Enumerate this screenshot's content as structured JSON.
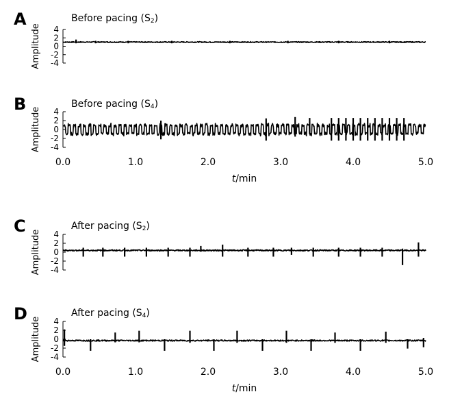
{
  "chart_data": [
    {
      "id": "A",
      "type": "line",
      "panel_label": "A",
      "title": "Before pacing (S",
      "title_sub": "2",
      "title_end": ")",
      "ylabel": "Amplitude",
      "ylim": [
        -4,
        4
      ],
      "yticks": [
        "4",
        "2",
        "0",
        "-2",
        "-4"
      ],
      "xlim": [
        0,
        5
      ],
      "baseline": 1.0,
      "noise": 0.12,
      "beats": [
        {
          "t": 0.18,
          "up": 0.6,
          "down": 0.3
        },
        {
          "t": 0.45,
          "up": 0.3,
          "down": 0.3
        },
        {
          "t": 0.9,
          "up": 0.3,
          "down": 0.3
        },
        {
          "t": 1.5,
          "up": 0.3,
          "down": 0.3
        },
        {
          "t": 2.3,
          "up": 0.3,
          "down": 0.3
        },
        {
          "t": 3.1,
          "up": 0.3,
          "down": 0.3
        },
        {
          "t": 3.8,
          "up": 0.3,
          "down": 0.3
        },
        {
          "t": 4.5,
          "up": 0.3,
          "down": 0.3
        }
      ]
    },
    {
      "id": "B",
      "type": "line",
      "panel_label": "B",
      "title": "Before pacing (S",
      "title_sub": "4",
      "title_end": ")",
      "ylabel": "Amplitude",
      "ylim": [
        -4,
        4
      ],
      "yticks": [
        "4",
        "2",
        "0",
        "-2",
        "-4"
      ],
      "xlim": [
        0,
        5
      ],
      "xticks": [
        "0.0",
        "1.0",
        "2.0",
        "3.0",
        "4.0",
        "5.0"
      ],
      "xlabel_italic": "t",
      "xlabel_rest": "/min",
      "baseline": 0.0,
      "noise": 0.25,
      "oscillation": {
        "period": 0.07,
        "amplitude": 1.2
      },
      "beats": [
        {
          "t": 1.35,
          "up": 2.0,
          "down": 2.2
        },
        {
          "t": 2.8,
          "up": 2.5,
          "down": 2.5
        },
        {
          "t": 3.2,
          "up": 2.8,
          "down": 1.6
        },
        {
          "t": 3.4,
          "up": 2.6,
          "down": 1.0
        },
        {
          "t": 3.7,
          "up": 2.6,
          "down": 2.5
        },
        {
          "t": 3.8,
          "up": 2.6,
          "down": 2.5
        },
        {
          "t": 3.9,
          "up": 2.6,
          "down": 2.5
        },
        {
          "t": 4.0,
          "up": 2.6,
          "down": 2.5
        },
        {
          "t": 4.1,
          "up": 2.6,
          "down": 2.5
        },
        {
          "t": 4.2,
          "up": 2.6,
          "down": 2.5
        },
        {
          "t": 4.3,
          "up": 2.6,
          "down": 2.5
        },
        {
          "t": 4.4,
          "up": 2.6,
          "down": 2.5
        },
        {
          "t": 4.5,
          "up": 2.6,
          "down": 2.5
        },
        {
          "t": 4.6,
          "up": 2.6,
          "down": 2.5
        },
        {
          "t": 4.7,
          "up": 2.6,
          "down": 2.5
        }
      ]
    },
    {
      "id": "C",
      "type": "line",
      "panel_label": "C",
      "title": "After pacing (S",
      "title_sub": "2",
      "title_end": ")",
      "ylabel": "Amplitude",
      "ylim": [
        -4,
        4
      ],
      "yticks": [
        "4",
        "2",
        "0",
        "-2",
        "-4"
      ],
      "xlim": [
        0,
        5
      ],
      "baseline": 0.4,
      "noise": 0.15,
      "beats": [
        {
          "t": 0.28,
          "up": 0.6,
          "down": 1.4
        },
        {
          "t": 0.55,
          "up": 0.6,
          "down": 1.4
        },
        {
          "t": 0.85,
          "up": 0.6,
          "down": 1.4
        },
        {
          "t": 1.15,
          "up": 0.6,
          "down": 1.4
        },
        {
          "t": 1.45,
          "up": 0.6,
          "down": 1.4
        },
        {
          "t": 1.75,
          "up": 0.6,
          "down": 1.4
        },
        {
          "t": 1.9,
          "up": 1.0,
          "down": 0.3
        },
        {
          "t": 2.2,
          "up": 1.3,
          "down": 1.4
        },
        {
          "t": 2.55,
          "up": 0.6,
          "down": 1.4
        },
        {
          "t": 2.9,
          "up": 0.6,
          "down": 1.4
        },
        {
          "t": 3.15,
          "up": 0.6,
          "down": 1.0
        },
        {
          "t": 3.45,
          "up": 0.6,
          "down": 1.4
        },
        {
          "t": 3.8,
          "up": 0.6,
          "down": 1.4
        },
        {
          "t": 4.1,
          "up": 0.6,
          "down": 1.4
        },
        {
          "t": 4.4,
          "up": 0.6,
          "down": 1.4
        },
        {
          "t": 4.68,
          "up": 0.4,
          "down": 3.3
        },
        {
          "t": 4.9,
          "up": 1.8,
          "down": 1.4
        }
      ]
    },
    {
      "id": "D",
      "type": "line",
      "panel_label": "D",
      "title": "After pacing (S",
      "title_sub": "4",
      "title_end": ")",
      "ylabel": "Amplitude",
      "ylim": [
        -4,
        4
      ],
      "yticks": [
        "4",
        "2",
        "0",
        "-2",
        "-4"
      ],
      "xlim": [
        0,
        5
      ],
      "xticks": [
        "0.0",
        "1.0",
        "2.0",
        "3.0",
        "4.0",
        "5.0"
      ],
      "xlabel_italic": "t",
      "xlabel_rest": "/min",
      "baseline": -0.3,
      "noise": 0.15,
      "beats": [
        {
          "t": 0.02,
          "up": 2.5,
          "down": 1.2
        },
        {
          "t": 0.38,
          "up": 0.3,
          "down": 2.3
        },
        {
          "t": 0.72,
          "up": 1.8,
          "down": 0.4
        },
        {
          "t": 1.05,
          "up": 2.2,
          "down": 0.4
        },
        {
          "t": 1.4,
          "up": 0.3,
          "down": 2.3
        },
        {
          "t": 1.75,
          "up": 2.2,
          "down": 0.5
        },
        {
          "t": 2.08,
          "up": 0.3,
          "down": 2.3
        },
        {
          "t": 2.4,
          "up": 2.2,
          "down": 0.5
        },
        {
          "t": 2.75,
          "up": 0.3,
          "down": 2.3
        },
        {
          "t": 3.08,
          "up": 2.2,
          "down": 0.5
        },
        {
          "t": 3.42,
          "up": 0.3,
          "down": 2.3
        },
        {
          "t": 3.75,
          "up": 1.8,
          "down": 0.5
        },
        {
          "t": 4.1,
          "up": 0.3,
          "down": 2.3
        },
        {
          "t": 4.45,
          "up": 2.0,
          "down": 0.5
        },
        {
          "t": 4.75,
          "up": 0.3,
          "down": 1.8
        },
        {
          "t": 4.97,
          "up": 0.6,
          "down": 1.5
        }
      ]
    }
  ]
}
